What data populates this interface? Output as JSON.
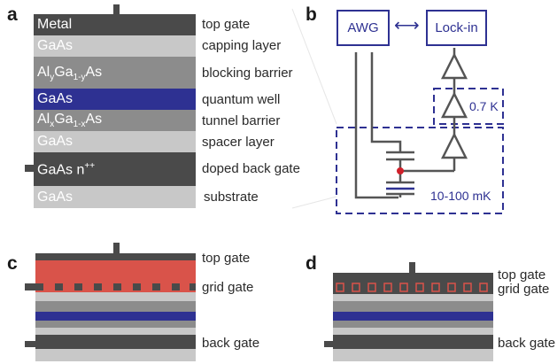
{
  "panels": {
    "a": "a",
    "b": "b",
    "c": "c",
    "d": "d"
  },
  "stack_a": {
    "layers": [
      {
        "text": "Metal",
        "label": "top gate"
      },
      {
        "text": "GaAs",
        "label": "capping layer"
      },
      {
        "text_parts": [
          "Al",
          "y",
          "Ga",
          "1-y",
          "As"
        ],
        "label": "blocking barrier"
      },
      {
        "text": "GaAs",
        "label": "quantum well"
      },
      {
        "text_parts": [
          "Al",
          "x",
          "Ga",
          "1-x",
          "As"
        ],
        "label": "tunnel barrier"
      },
      {
        "text": "GaAs",
        "label": "spacer layer"
      },
      {
        "text_parts": [
          "GaAs n",
          "++"
        ],
        "label": "doped back gate"
      },
      {
        "text": "GaAs",
        "label": "substrate"
      }
    ]
  },
  "circuit_b": {
    "awg": "AWG",
    "lockin": "Lock-in",
    "arrow": "⟷",
    "temp_warm": "0.7 K",
    "temp_cold": "10-100 mK"
  },
  "stack_c": {
    "labels": {
      "top": "top gate",
      "grid": "grid gate",
      "back": "back gate"
    }
  },
  "stack_d": {
    "labels": {
      "top": "top gate",
      "grid": "grid gate",
      "back": "back gate"
    }
  },
  "colors": {
    "dark": "#4a4a4a",
    "light": "#c8c8c8",
    "mid": "#8c8c8c",
    "well": "#2e3192",
    "grid_red": "#d9534a",
    "outline_blue": "#2e3192",
    "dot_red": "#d0202a"
  }
}
